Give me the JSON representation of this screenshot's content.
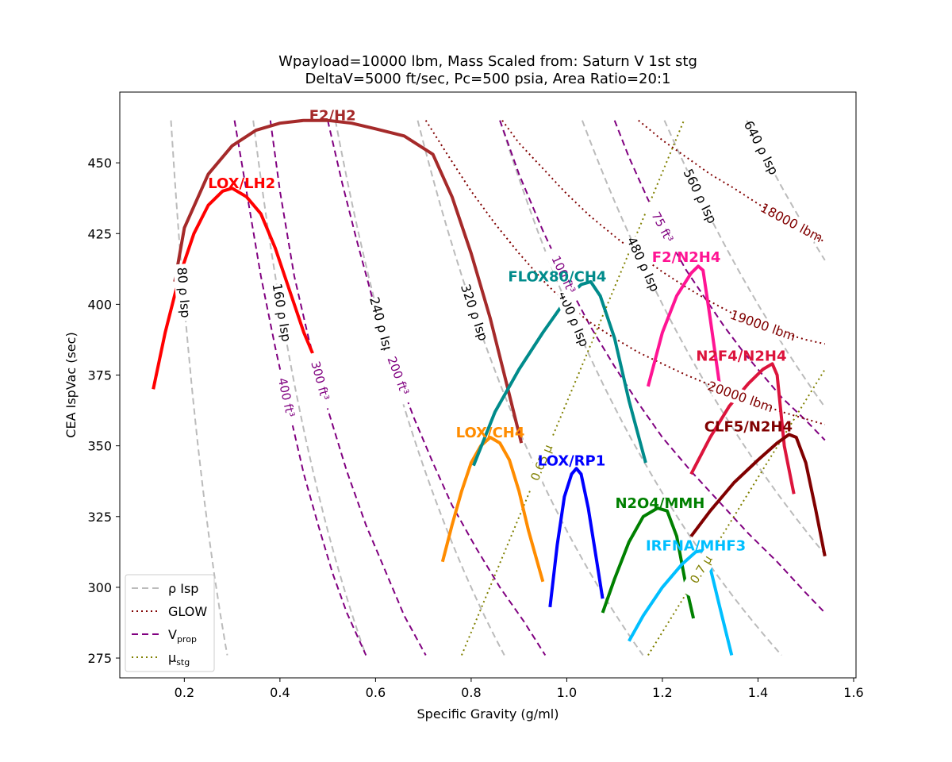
{
  "chart_data": {
    "type": "line",
    "title": [
      "Wpayload=10000 lbm, Mass Scaled from: Saturn V 1st stg",
      "DeltaV=5000 ft/sec, Pc=500 psia, Area Ratio=20:1"
    ],
    "xlabel": "Specific Gravity (g/ml)",
    "ylabel": "CEA IspVac (sec)",
    "xlim": [
      0.065,
      1.605
    ],
    "ylim": [
      268,
      475
    ],
    "xticks": [
      0.2,
      0.4,
      0.6,
      0.8,
      1.0,
      1.2,
      1.4,
      1.6
    ],
    "xtick_labels": [
      "0.2",
      "0.4",
      "0.6",
      "0.8",
      "1.0",
      "1.2",
      "1.4",
      "1.6"
    ],
    "yticks": [
      275,
      300,
      325,
      350,
      375,
      400,
      425,
      450
    ],
    "ytick_labels": [
      "275",
      "300",
      "325",
      "350",
      "375",
      "400",
      "425",
      "450"
    ],
    "grid": false,
    "legend": {
      "position": "lower-left",
      "entries": [
        {
          "label": "ρ Isp",
          "style": "dashed",
          "color": "#bbbbbb"
        },
        {
          "label": "GLOW",
          "style": "dotted",
          "color": "#800000"
        },
        {
          "label": "V",
          "sub": "prop",
          "style": "dashed",
          "color": "#800080"
        },
        {
          "label": "μ",
          "sub": "stg",
          "style": "dotted",
          "color": "#808000"
        }
      ]
    },
    "series": [
      {
        "name": "LOX/LH2",
        "color": "#ff0000",
        "label": {
          "text": "LOX/LH2",
          "x": 0.32,
          "y": 443
        },
        "x": [
          0.135,
          0.16,
          0.19,
          0.22,
          0.25,
          0.28,
          0.3,
          0.33,
          0.36,
          0.39,
          0.42,
          0.45,
          0.48,
          0.505
        ],
        "y": [
          370,
          390,
          410,
          425,
          435,
          440,
          441,
          438,
          432,
          420,
          405,
          390,
          378,
          367
        ]
      },
      {
        "name": "F2/H2",
        "color": "#a52a2a",
        "label": {
          "text": "F2/H2",
          "x": 0.51,
          "y": 467
        },
        "x": [
          0.18,
          0.2,
          0.25,
          0.3,
          0.35,
          0.4,
          0.45,
          0.5,
          0.55,
          0.6,
          0.66,
          0.72,
          0.76,
          0.8,
          0.84,
          0.88,
          0.905
        ],
        "y": [
          408,
          427,
          446,
          456,
          461.5,
          464,
          465,
          465,
          464,
          462,
          459.5,
          453,
          438,
          418,
          395,
          368,
          351
        ]
      },
      {
        "name": "LOX/CH4",
        "color": "#ff8c00",
        "label": {
          "text": "LOX/CH4",
          "x": 0.84,
          "y": 355
        },
        "x": [
          0.74,
          0.76,
          0.78,
          0.8,
          0.82,
          0.84,
          0.86,
          0.88,
          0.9,
          0.92,
          0.95
        ],
        "y": [
          309,
          322,
          334,
          344,
          350,
          353,
          351,
          345,
          334,
          320,
          302
        ]
      },
      {
        "name": "FLOX80/CH4",
        "color": "#008b8b",
        "label": {
          "text": "FLOX80/CH4",
          "x": 0.98,
          "y": 410
        },
        "x": [
          0.805,
          0.85,
          0.9,
          0.95,
          1.0,
          1.03,
          1.05,
          1.07,
          1.1,
          1.13,
          1.165
        ],
        "y": [
          343,
          362,
          377,
          390,
          402,
          407,
          408,
          403,
          388,
          366,
          344
        ]
      },
      {
        "name": "LOX/RP1",
        "color": "#0000ff",
        "label": {
          "text": "LOX/RP1",
          "x": 1.01,
          "y": 345
        },
        "x": [
          0.965,
          0.98,
          0.995,
          1.01,
          1.02,
          1.03,
          1.045,
          1.06,
          1.075
        ],
        "y": [
          293,
          315,
          332,
          340,
          342,
          340,
          328,
          312,
          296
        ]
      },
      {
        "name": "N2O4/MMH",
        "color": "#008000",
        "label": {
          "text": "N2O4/MMH",
          "x": 1.195,
          "y": 330
        },
        "x": [
          1.075,
          1.1,
          1.13,
          1.16,
          1.19,
          1.21,
          1.23,
          1.25,
          1.265
        ],
        "y": [
          291,
          303,
          316,
          325,
          328,
          327,
          318,
          300,
          289
        ]
      },
      {
        "name": "IRFNA/MHF3",
        "color": "#00bfff",
        "label": {
          "text": "IRFNA/MHF3",
          "x": 1.27,
          "y": 315
        },
        "x": [
          1.13,
          1.16,
          1.2,
          1.24,
          1.27,
          1.285,
          1.3,
          1.32,
          1.345
        ],
        "y": [
          281,
          290,
          300,
          308,
          312.5,
          313,
          307,
          293,
          276
        ]
      },
      {
        "name": "F2/N2H4",
        "color": "#ff1493",
        "label": {
          "text": "F2/N2H4",
          "x": 1.25,
          "y": 417
        },
        "x": [
          1.17,
          1.2,
          1.23,
          1.26,
          1.275,
          1.285,
          1.3,
          1.32
        ],
        "y": [
          371,
          390,
          403,
          411,
          413.5,
          412,
          395,
          371
        ]
      },
      {
        "name": "N2F4/N2H4",
        "color": "#dc143c",
        "label": {
          "text": "N2F4/N2H4",
          "x": 1.365,
          "y": 382
        },
        "x": [
          1.26,
          1.3,
          1.34,
          1.38,
          1.41,
          1.43,
          1.44,
          1.455,
          1.475
        ],
        "y": [
          340,
          353,
          364,
          372,
          377,
          379,
          375,
          350,
          333
        ]
      },
      {
        "name": "CLF5/N2H4",
        "color": "#800000",
        "label": {
          "text": "CLF5/N2H4",
          "x": 1.38,
          "y": 357
        },
        "x": [
          1.26,
          1.3,
          1.35,
          1.4,
          1.44,
          1.465,
          1.48,
          1.5,
          1.52,
          1.54
        ],
        "y": [
          318,
          327,
          337,
          345,
          351,
          354,
          353,
          344,
          328,
          311
        ]
      }
    ],
    "rho_isp": [
      {
        "label": "80 ρ Isp",
        "value": 80
      },
      {
        "label": "160 ρ Isp",
        "value": 160
      },
      {
        "label": "240 ρ Isp",
        "value": 240
      },
      {
        "label": "320 ρ Isp",
        "value": 320
      },
      {
        "label": "400 ρ Isp",
        "value": 400
      },
      {
        "label": "480 ρ Isp",
        "value": 480
      },
      {
        "label": "560 ρ Isp",
        "value": 560
      },
      {
        "label": "640 ρ Isp",
        "value": 640
      }
    ],
    "vprop": [
      {
        "label": "400 ft³",
        "x": [
          0.305,
          0.33,
          0.36,
          0.39,
          0.42,
          0.45,
          0.48,
          0.51,
          0.54,
          0.58
        ],
        "y": [
          465,
          440,
          410,
          385,
          362,
          340,
          322,
          305,
          291,
          276
        ]
      },
      {
        "label": "300 ft³",
        "x": [
          0.38,
          0.4,
          0.43,
          0.46,
          0.5,
          0.54,
          0.58,
          0.62,
          0.66,
          0.705
        ],
        "y": [
          465,
          440,
          410,
          388,
          363,
          341,
          322,
          306,
          290,
          276
        ]
      },
      {
        "label": "200 ft³",
        "x": [
          0.5,
          0.53,
          0.56,
          0.6,
          0.64,
          0.68,
          0.72,
          0.76,
          0.81,
          0.86,
          0.91,
          0.955
        ],
        "y": [
          465,
          443,
          423,
          398,
          378,
          360,
          344,
          329,
          314,
          300,
          288,
          276
        ]
      },
      {
        "label": "100 ft³",
        "x": [
          0.86,
          0.9,
          0.95,
          1.0,
          1.05,
          1.1,
          1.15,
          1.2,
          1.26,
          1.32,
          1.38,
          1.44,
          1.5,
          1.54
        ],
        "y": [
          465,
          446,
          426,
          408,
          392,
          378,
          365,
          353,
          341,
          330,
          319,
          309,
          298,
          291
        ]
      },
      {
        "label": "75 ft³",
        "x": [
          1.1,
          1.13,
          1.17,
          1.21,
          1.25,
          1.29,
          1.33,
          1.37,
          1.41,
          1.45,
          1.5,
          1.54
        ],
        "y": [
          465,
          452,
          437,
          424,
          412,
          402,
          392,
          383,
          375,
          367,
          359,
          352
        ]
      }
    ],
    "glow": [
      {
        "label": "18000 lbm",
        "x": [
          1.15,
          1.2,
          1.25,
          1.3,
          1.35,
          1.4,
          1.45,
          1.5,
          1.54
        ],
        "y": [
          465,
          458,
          452,
          446,
          441,
          435.5,
          430.5,
          426,
          422
        ]
      },
      {
        "label": "19000 lbm",
        "x": [
          0.865,
          0.9,
          0.95,
          1.0,
          1.05,
          1.1,
          1.15,
          1.2,
          1.25,
          1.3,
          1.35,
          1.4,
          1.45,
          1.5,
          1.54
        ],
        "y": [
          465,
          457,
          448,
          439,
          431,
          424,
          417.5,
          411.5,
          406,
          401,
          396.5,
          393,
          390,
          387.5,
          386
        ]
      },
      {
        "label": "20000 lbm",
        "x": [
          0.705,
          0.75,
          0.8,
          0.85,
          0.9,
          0.95,
          1.0,
          1.05,
          1.1,
          1.15,
          1.2,
          1.25,
          1.3,
          1.35,
          1.4,
          1.45,
          1.5,
          1.54
        ],
        "y": [
          465,
          453,
          440,
          428.5,
          418,
          408.5,
          400,
          393.5,
          388,
          383,
          379,
          375,
          371.5,
          368,
          365,
          362,
          359.5,
          357.5
        ]
      }
    ],
    "mu_stg": [
      {
        "label": "0.65 μ",
        "x": [
          0.78,
          1.245
        ],
        "y": [
          276,
          465
        ]
      },
      {
        "label": "0.7 μ",
        "x": [
          1.17,
          1.54
        ],
        "y": [
          276,
          377
        ]
      }
    ]
  }
}
